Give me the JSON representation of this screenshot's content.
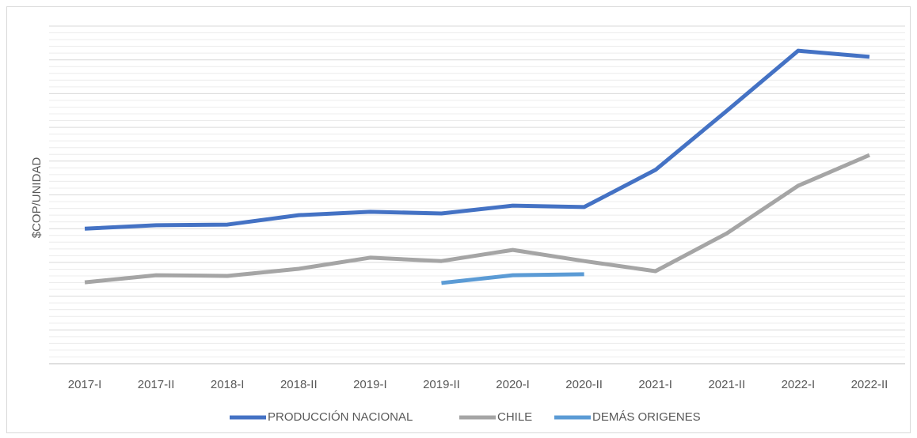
{
  "chart_data": {
    "type": "line",
    "y_label": "$COP/UNIDAD",
    "categories": [
      "2017-I",
      "2017-II",
      "2018-I",
      "2018-II",
      "2019-I",
      "2019-II",
      "2020-I",
      "2020-II",
      "2021-I",
      "2021-II",
      "2022-I",
      "2022-II"
    ],
    "series": [
      {
        "name": "PRODUCCIÓN NACIONAL",
        "color": "#4472c4",
        "values": [
          4.0,
          4.1,
          4.12,
          4.4,
          4.5,
          4.45,
          4.68,
          4.64,
          5.74,
          7.49,
          9.27,
          9.09
        ]
      },
      {
        "name": "CHILE",
        "color": "#a5a5a5",
        "values": [
          2.41,
          2.62,
          2.6,
          2.81,
          3.14,
          3.04,
          3.37,
          3.04,
          2.74,
          3.86,
          5.27,
          6.18
        ]
      },
      {
        "name": "DEMÁS ORIGENES",
        "color": "#5b9bd5",
        "values": [
          null,
          null,
          null,
          null,
          null,
          2.39,
          2.62,
          2.65,
          null,
          null,
          null,
          null
        ]
      }
    ],
    "ylim": [
      0,
      10
    ],
    "yticks": [
      0,
      1,
      2,
      3,
      4,
      5,
      6,
      7,
      8,
      9,
      10
    ],
    "grid": true,
    "minor_grid_divisions": 5,
    "legend": "bottom"
  }
}
